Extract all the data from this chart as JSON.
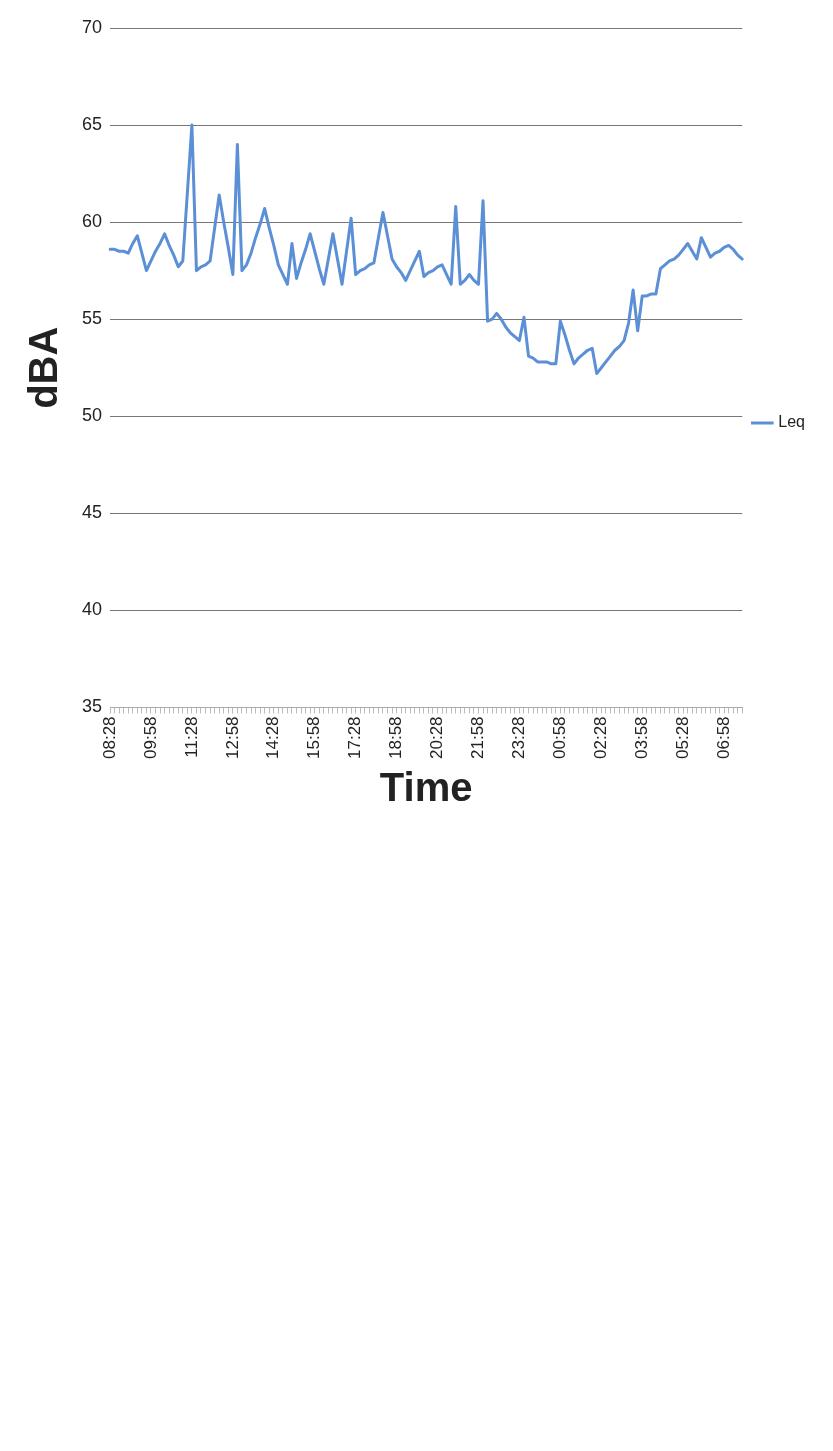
{
  "chart_data": {
    "type": "line",
    "xlabel": "Time",
    "ylabel": "dBA",
    "legend": "right",
    "grid": "y",
    "marker": "none",
    "line_style": "solid",
    "ylim": [
      35,
      70
    ],
    "yticks": [
      35,
      40,
      45,
      50,
      55,
      60,
      65,
      70
    ],
    "categories": [
      "08:28",
      null,
      null,
      null,
      null,
      null,
      null,
      null,
      null,
      "09:58",
      null,
      null,
      null,
      null,
      null,
      null,
      null,
      null,
      "11:28",
      null,
      null,
      null,
      null,
      null,
      null,
      null,
      null,
      "12:58",
      null,
      null,
      null,
      null,
      null,
      null,
      null,
      null,
      "14:28",
      null,
      null,
      null,
      null,
      null,
      null,
      null,
      null,
      "15:58",
      null,
      null,
      null,
      null,
      null,
      null,
      null,
      null,
      "17:28",
      null,
      null,
      null,
      null,
      null,
      null,
      null,
      null,
      "18:58",
      null,
      null,
      null,
      null,
      null,
      null,
      null,
      null,
      "20:28",
      null,
      null,
      null,
      null,
      null,
      null,
      null,
      null,
      "21:58",
      null,
      null,
      null,
      null,
      null,
      null,
      null,
      null,
      "23:28",
      null,
      null,
      null,
      null,
      null,
      null,
      null,
      null,
      "00:58",
      null,
      null,
      null,
      null,
      null,
      null,
      null,
      null,
      "02:28",
      null,
      null,
      null,
      null,
      null,
      null,
      null,
      null,
      "03:58",
      null,
      null,
      null,
      null,
      null,
      null,
      null,
      null,
      "05:28",
      null,
      null,
      null,
      null,
      null,
      null,
      null,
      null,
      "06:58",
      null,
      null,
      null,
      null
    ],
    "series": [
      {
        "name": "Leq",
        "color": "#5b8fd6",
        "values": [
          58.6,
          58.6,
          58.5,
          58.5,
          58.4,
          58.9,
          59.3,
          58.4,
          57.5,
          58.0,
          58.5,
          58.9,
          59.4,
          58.8,
          58.3,
          57.7,
          58.0,
          61.5,
          65.0,
          57.5,
          57.7,
          57.8,
          58.0,
          59.7,
          61.4,
          60.0,
          58.7,
          57.3,
          64.0,
          57.5,
          57.8,
          58.4,
          59.2,
          59.9,
          60.7,
          59.7,
          58.8,
          57.8,
          57.3,
          56.8,
          58.9,
          57.1,
          57.9,
          58.6,
          59.4,
          58.5,
          57.6,
          56.8,
          58.1,
          59.4,
          58.1,
          56.8,
          58.5,
          60.2,
          57.3,
          57.5,
          57.6,
          57.8,
          57.9,
          59.2,
          60.5,
          59.3,
          58.1,
          57.7,
          57.4,
          57.0,
          57.5,
          58.0,
          58.5,
          57.2,
          57.4,
          57.5,
          57.7,
          57.8,
          57.3,
          56.8,
          60.8,
          56.8,
          57.0,
          57.3,
          57.0,
          56.8,
          61.1,
          54.9,
          55.0,
          55.3,
          55.0,
          54.6,
          54.3,
          54.1,
          53.9,
          55.1,
          53.1,
          53.0,
          52.8,
          52.8,
          52.8,
          52.7,
          52.7,
          54.9,
          54.2,
          53.4,
          52.7,
          53.0,
          53.2,
          53.4,
          53.5,
          52.2,
          52.5,
          52.8,
          53.1,
          53.4,
          53.6,
          53.9,
          54.8,
          56.5,
          54.4,
          56.2,
          56.2,
          56.3,
          56.3,
          57.6,
          57.8,
          58.0,
          58.1,
          58.3,
          58.6,
          58.9,
          58.5,
          58.1,
          59.2,
          58.7,
          58.2,
          58.4,
          58.5,
          58.7,
          58.8,
          58.6,
          58.3,
          58.1
        ]
      }
    ]
  }
}
